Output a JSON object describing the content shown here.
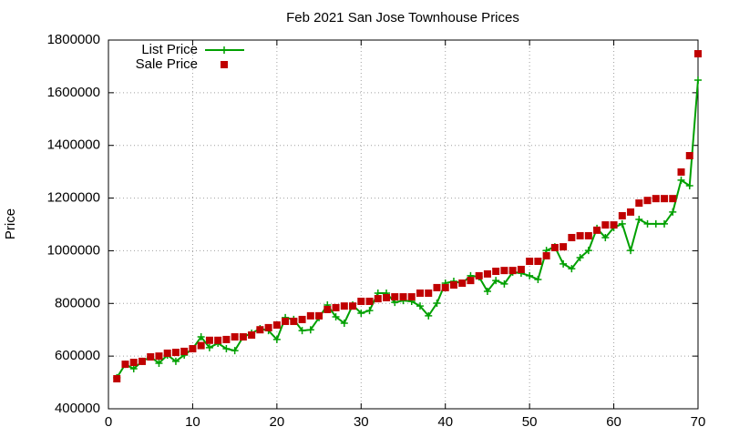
{
  "chart_data": {
    "type": "line",
    "title": "Feb 2021 San Jose Townhouse Prices",
    "y_label": "Price",
    "x": [
      1,
      2,
      3,
      4,
      5,
      6,
      7,
      8,
      9,
      10,
      11,
      12,
      13,
      14,
      15,
      16,
      17,
      18,
      19,
      20,
      21,
      22,
      23,
      24,
      25,
      26,
      27,
      28,
      29,
      30,
      31,
      32,
      33,
      34,
      35,
      36,
      37,
      38,
      39,
      40,
      41,
      42,
      43,
      44,
      45,
      46,
      47,
      48,
      49,
      50,
      51,
      52,
      53,
      54,
      55,
      56,
      57,
      58,
      59,
      60,
      61,
      62,
      63,
      64,
      65,
      66,
      67,
      68,
      69,
      70
    ],
    "series": [
      {
        "name": "List Price",
        "color": "#00a000",
        "mode": "linespoints",
        "values": [
          518000,
          569000,
          552000,
          580000,
          597000,
          573000,
          604000,
          580000,
          604000,
          628000,
          673000,
          632000,
          649000,
          628000,
          621000,
          673000,
          687000,
          704000,
          697000,
          663000,
          746000,
          739000,
          697000,
          700000,
          746000,
          794000,
          749000,
          725000,
          794000,
          763000,
          773000,
          839000,
          839000,
          804000,
          811000,
          808000,
          790000,
          753000,
          801000,
          877000,
          884000,
          877000,
          905000,
          901000,
          846000,
          887000,
          874000,
          919000,
          915000,
          905000,
          891000,
          1001000,
          1015000,
          950000,
          932000,
          974000,
          1001000,
          1085000,
          1050000,
          1088000,
          1102000,
          1001000,
          1119000,
          1102000,
          1102000,
          1102000,
          1147000,
          1268000,
          1247000,
          1648000
        ]
      },
      {
        "name": "Sale Price",
        "color": "#c00000",
        "mode": "points",
        "values": [
          514000,
          569000,
          576000,
          580000,
          597000,
          600000,
          611000,
          614000,
          618000,
          628000,
          640000,
          660000,
          660000,
          663000,
          673000,
          673000,
          680000,
          700000,
          708000,
          718000,
          732000,
          732000,
          739000,
          753000,
          753000,
          777000,
          784000,
          790000,
          790000,
          808000,
          808000,
          818000,
          822000,
          825000,
          825000,
          825000,
          839000,
          839000,
          860000,
          860000,
          870000,
          877000,
          887000,
          905000,
          912000,
          922000,
          925000,
          925000,
          929000,
          960000,
          960000,
          981000,
          1012000,
          1015000,
          1050000,
          1057000,
          1057000,
          1078000,
          1098000,
          1098000,
          1133000,
          1147000,
          1181000,
          1191000,
          1198000,
          1198000,
          1198000,
          1299000,
          1361000,
          1748000
        ]
      }
    ],
    "xlim": [
      0,
      70
    ],
    "xticks": [
      0,
      10,
      20,
      30,
      40,
      50,
      60,
      70
    ],
    "ylim": [
      400000,
      1800000
    ],
    "yticks": [
      400000,
      600000,
      800000,
      1000000,
      1200000,
      1400000,
      1600000,
      1800000
    ],
    "grid": true,
    "legend": "top-left"
  }
}
